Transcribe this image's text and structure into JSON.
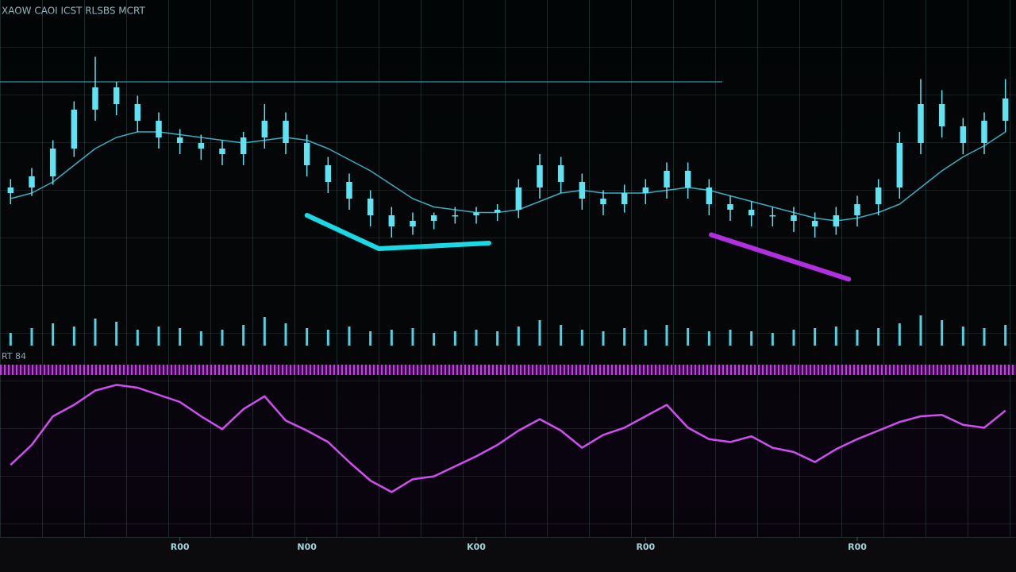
{
  "chart_data": {
    "type": "candlestick",
    "title": "XAOW CAOI ICST RLSBS MCRT",
    "oscillator_label": "RT 84",
    "open": [
      42,
      44,
      48,
      58,
      72,
      80,
      74,
      68,
      62,
      60,
      58,
      56,
      62,
      68,
      60,
      52,
      46,
      40,
      34,
      30,
      32,
      34,
      34,
      35,
      36,
      44,
      52,
      46,
      40,
      38,
      42,
      44,
      50,
      44,
      38,
      36,
      34,
      34,
      32,
      30,
      34,
      38,
      44,
      60,
      74,
      66,
      60,
      68
    ],
    "high": [
      47,
      51,
      61,
      75,
      91,
      82,
      77,
      71,
      65,
      63,
      61,
      64,
      74,
      71,
      63,
      55,
      49,
      43,
      37,
      35,
      35,
      37,
      37,
      38,
      47,
      56,
      55,
      49,
      43,
      45,
      47,
      53,
      53,
      47,
      41,
      39,
      37,
      37,
      35,
      37,
      41,
      47,
      64,
      83,
      79,
      69,
      71,
      83
    ],
    "low": [
      38,
      41,
      45,
      55,
      68,
      70,
      64,
      58,
      56,
      54,
      52,
      52,
      58,
      56,
      48,
      42,
      36,
      30,
      26,
      27,
      29,
      31,
      31,
      32,
      33,
      40,
      42,
      36,
      34,
      35,
      38,
      40,
      40,
      34,
      32,
      30,
      30,
      28,
      26,
      27,
      30,
      34,
      40,
      56,
      62,
      56,
      56,
      64
    ],
    "close": [
      44,
      48,
      58,
      72,
      80,
      74,
      68,
      62,
      60,
      58,
      56,
      62,
      68,
      60,
      52,
      46,
      40,
      34,
      30,
      32,
      34,
      34,
      35,
      36,
      44,
      52,
      46,
      40,
      38,
      42,
      44,
      50,
      44,
      38,
      36,
      34,
      34,
      32,
      30,
      34,
      38,
      44,
      60,
      74,
      66,
      60,
      68,
      76
    ],
    "ma": [
      40,
      42,
      46,
      52,
      58,
      62,
      64,
      64,
      63,
      62,
      61,
      60,
      61,
      62,
      61,
      58,
      54,
      50,
      45,
      40,
      37,
      36,
      35,
      35,
      36,
      39,
      42,
      43,
      42,
      42,
      42,
      43,
      44,
      43,
      41,
      39,
      37,
      35,
      33,
      32,
      33,
      35,
      38,
      44,
      50,
      55,
      59,
      64
    ],
    "volume": [
      40,
      55,
      70,
      60,
      85,
      75,
      50,
      60,
      55,
      45,
      50,
      65,
      90,
      70,
      55,
      50,
      60,
      45,
      50,
      55,
      40,
      45,
      50,
      45,
      60,
      80,
      65,
      50,
      45,
      55,
      50,
      65,
      55,
      45,
      50,
      45,
      40,
      50,
      55,
      60,
      50,
      55,
      70,
      95,
      80,
      60,
      55,
      65
    ],
    "oscillator": [
      36,
      50,
      70,
      78,
      88,
      92,
      90,
      85,
      80,
      70,
      61,
      75,
      84,
      67,
      60,
      52,
      38,
      25,
      17,
      26,
      28,
      35,
      42,
      50,
      60,
      68,
      60,
      48,
      57,
      62,
      70,
      78,
      62,
      54,
      52,
      56,
      48,
      45,
      38,
      47,
      54,
      60,
      66,
      70,
      71,
      64,
      62,
      74
    ],
    "candle_color": "#5fe3f2",
    "ma_color": "#3aaec0",
    "volume_color": "#4fd3e3",
    "oscillator_color": "#d04ef0",
    "ylim": [
      0,
      100
    ],
    "volume_ylim": [
      0,
      100
    ],
    "oscillator_ylim": [
      0,
      100
    ],
    "xlim": [
      0,
      48
    ],
    "ref_line": 82,
    "ref_color": "#2d7f8a",
    "trendlines": [
      {
        "color": "#19d9e6",
        "x": [
          14,
          17.4,
          22.6
        ],
        "y": [
          34,
          22,
          24
        ]
      },
      {
        "color": "#b030e0",
        "x": [
          33.1,
          39.6
        ],
        "y": [
          27,
          11
        ]
      }
    ],
    "xticks": [
      {
        "value": 8,
        "label": "R00"
      },
      {
        "value": 14,
        "label": "N00"
      },
      {
        "value": 22,
        "label": "K00"
      },
      {
        "value": 30,
        "label": "R00"
      },
      {
        "value": 40,
        "label": "R00"
      }
    ]
  }
}
